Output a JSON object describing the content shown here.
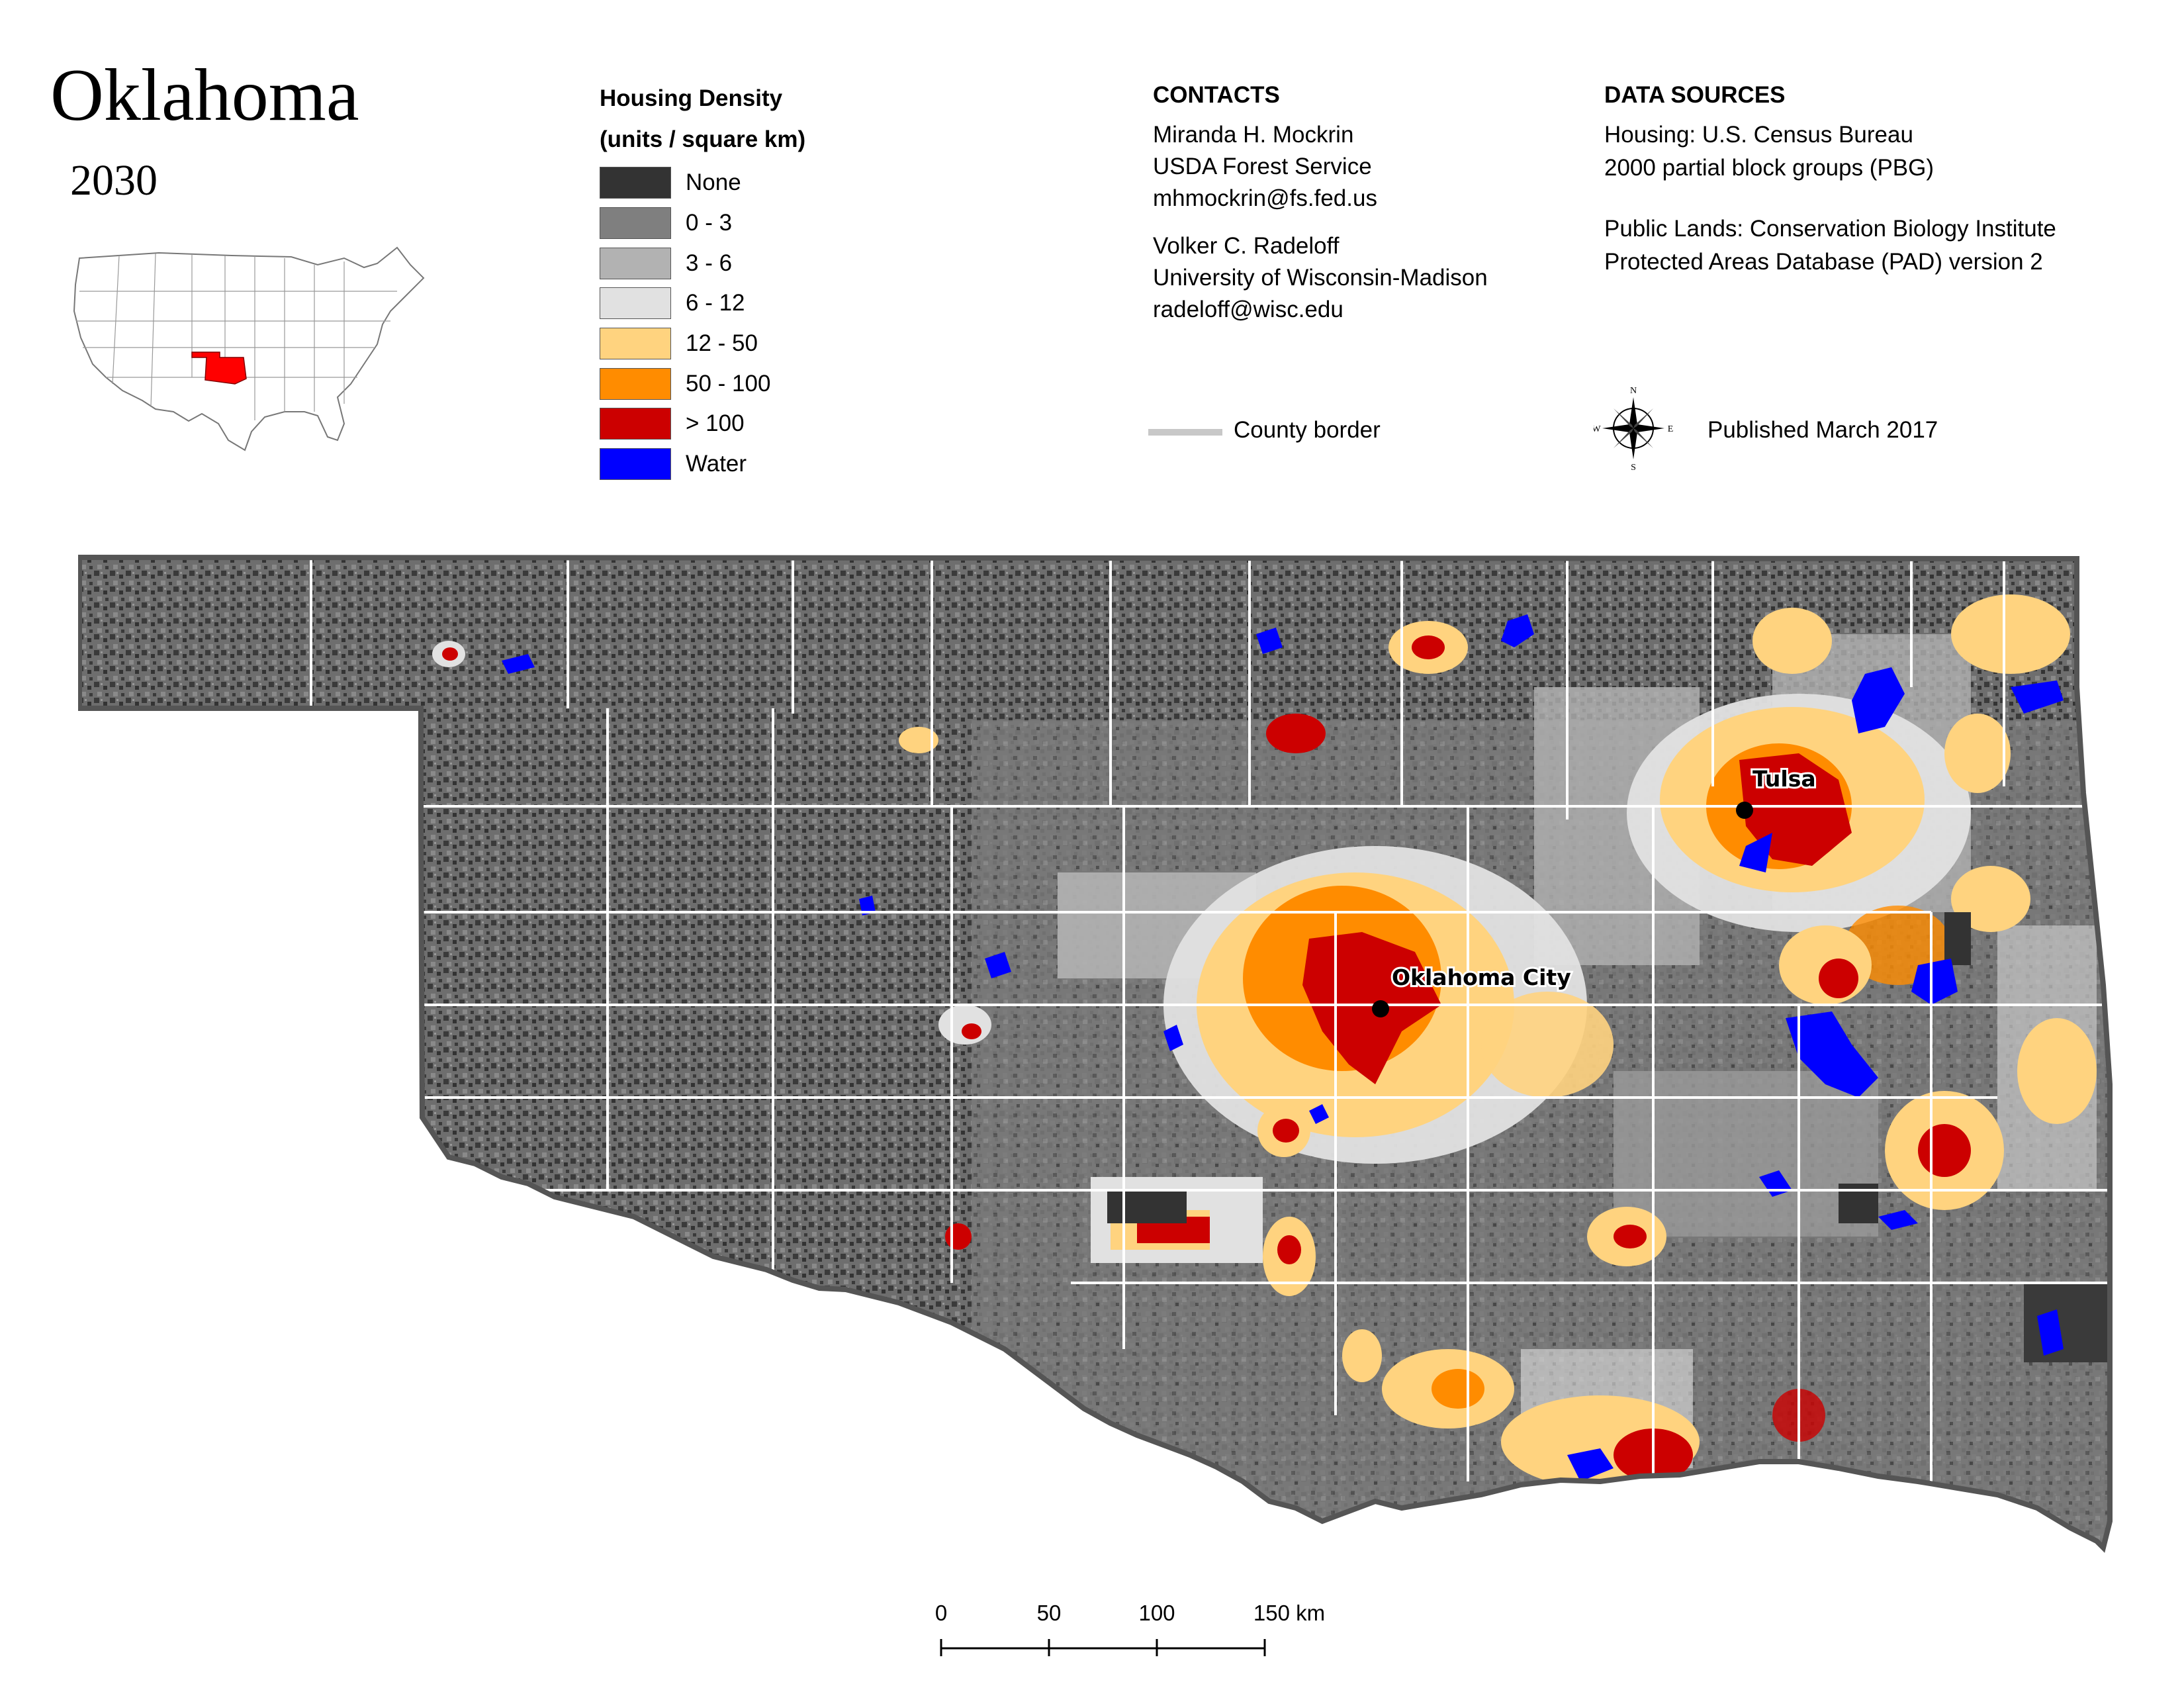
{
  "title": "Oklahoma",
  "subtitle": "2030",
  "legend": {
    "title_line1": "Housing Density",
    "title_line2": "(units / square km)",
    "items": [
      {
        "label": "None",
        "color": "#333333"
      },
      {
        "label": "0 - 3",
        "color": "#7f7f7f"
      },
      {
        "label": "3 - 6",
        "color": "#b2b2b2"
      },
      {
        "label": "6 - 12",
        "color": "#e1e1e1"
      },
      {
        "label": "12 - 50",
        "color": "#ffd37f"
      },
      {
        "label": "50 - 100",
        "color": "#ff8c00"
      },
      {
        "label": "> 100",
        "color": "#cc0000"
      },
      {
        "label": "Water",
        "color": "#0000ff"
      }
    ]
  },
  "contacts": {
    "heading": "CONTACTS",
    "people": [
      {
        "name": "Miranda H. Mockrin",
        "org": "USDA Forest Service",
        "email": "mhmockrin@fs.fed.us"
      },
      {
        "name": "Volker C. Radeloff",
        "org": "University of Wisconsin-Madison",
        "email": "radeloff@wisc.edu"
      }
    ]
  },
  "data_sources": {
    "heading": "DATA SOURCES",
    "housing_line1": "Housing: U.S. Census Bureau",
    "housing_line2": "2000 partial block groups (PBG)",
    "lands_line1": "Public Lands: Conservation Biology Institute",
    "lands_line2": "Protected Areas Database (PAD) version 2"
  },
  "county_border_label": "County border",
  "published": "Published March 2017",
  "compass": {
    "n": "N",
    "s": "S",
    "e": "E",
    "w": "W"
  },
  "cities": {
    "tulsa": "Tulsa",
    "okc": "Oklahoma City"
  },
  "scale": {
    "labels": [
      "0",
      "50",
      "100",
      "150 km"
    ]
  },
  "colors": {
    "county_line": "#ffffff",
    "state_outline": "#555555",
    "highlight_state": "#ff0000"
  }
}
